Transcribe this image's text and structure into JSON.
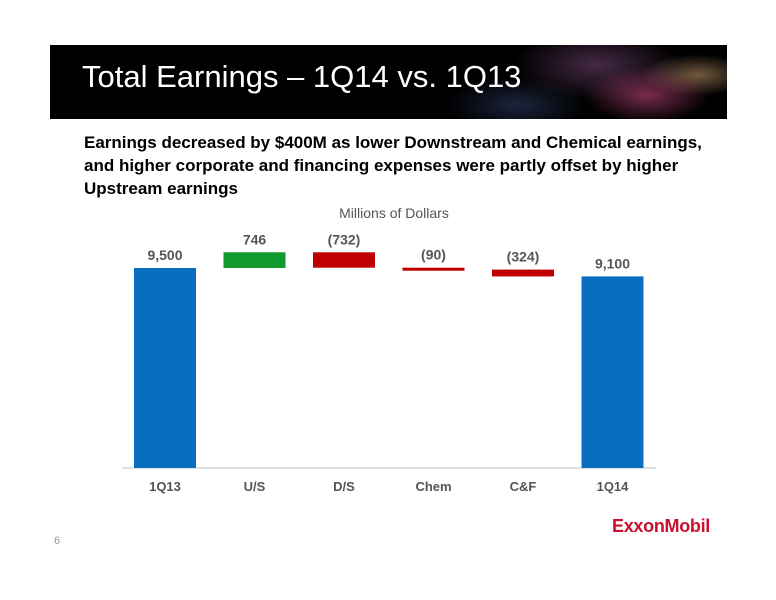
{
  "slide": {
    "title": "Total Earnings – 1Q14 vs. 1Q13",
    "subtitle": "Earnings decreased by $400M as lower Downstream and Chemical earnings, and higher corporate and financing expenses were partly offset by higher Upstream earnings",
    "page_number": "6",
    "logo_text": "ExxonMobil"
  },
  "chart_data": {
    "type": "bar",
    "subtype": "waterfall",
    "unit_label": "Millions of Dollars",
    "categories": [
      "1Q13",
      "U/S",
      "D/S",
      "Chem",
      "C&F",
      "1Q14"
    ],
    "values": [
      9500,
      746,
      -732,
      -90,
      -324,
      9100
    ],
    "labels": [
      "9,500",
      "746",
      "(732)",
      "(90)",
      "(324)",
      "9,100"
    ],
    "kinds": [
      "total",
      "delta",
      "delta",
      "delta",
      "delta",
      "total"
    ],
    "colors": {
      "total": "#0a6ec0",
      "increase": "#109a2e",
      "decrease": "#c00000",
      "axis": "#bfbfbf",
      "label": "#555555"
    }
  }
}
